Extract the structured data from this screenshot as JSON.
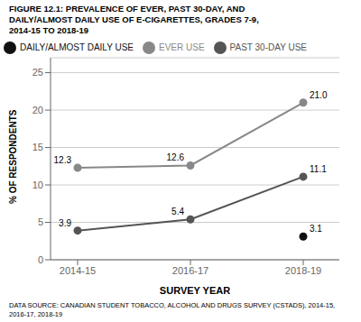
{
  "chart_data": {
    "type": "line",
    "title": "FIGURE 12.1: PREVALENCE OF EVER, PAST 30-DAY, AND\nDAILY/ALMOST DAILY USE OF E-CIGARETTES, GRADES 7-9,\n2014-15 TO 2018-19",
    "xlabel": "SURVEY YEAR",
    "ylabel": "% OF RESPONDENTS",
    "categories": [
      "2014-15",
      "2016-17",
      "2018-19"
    ],
    "series": [
      {
        "name": "EVER USE",
        "color": "#888888",
        "values": [
          12.3,
          12.6,
          21.0
        ],
        "value_labels": [
          "12.3",
          "12.6",
          "21.0"
        ],
        "marker": "circle",
        "line_style": "solid"
      },
      {
        "name": "PAST 30-DAY USE",
        "color": "#555555",
        "values": [
          3.9,
          5.4,
          11.1
        ],
        "marker": "circle",
        "line_style": "solid"
      },
      {
        "name": "DAILY/ALMOST DAILY USE",
        "color": "#111111",
        "values": [
          null,
          null,
          3.1
        ],
        "marker": "circle",
        "line_style": "none"
      }
    ],
    "ylim": [
      0,
      27
    ],
    "yticks": [
      0,
      5,
      10,
      15,
      20,
      25
    ],
    "grid": true,
    "legend": "upper left",
    "data_labels": true,
    "annotations": [
      "DATA SOURCE: CANADIAN STUDENT TOBACCO, ALCOHOL AND DRUGS SURVEY (CSTADS), 2014-15,\n2016-17, 2018-19"
    ]
  }
}
